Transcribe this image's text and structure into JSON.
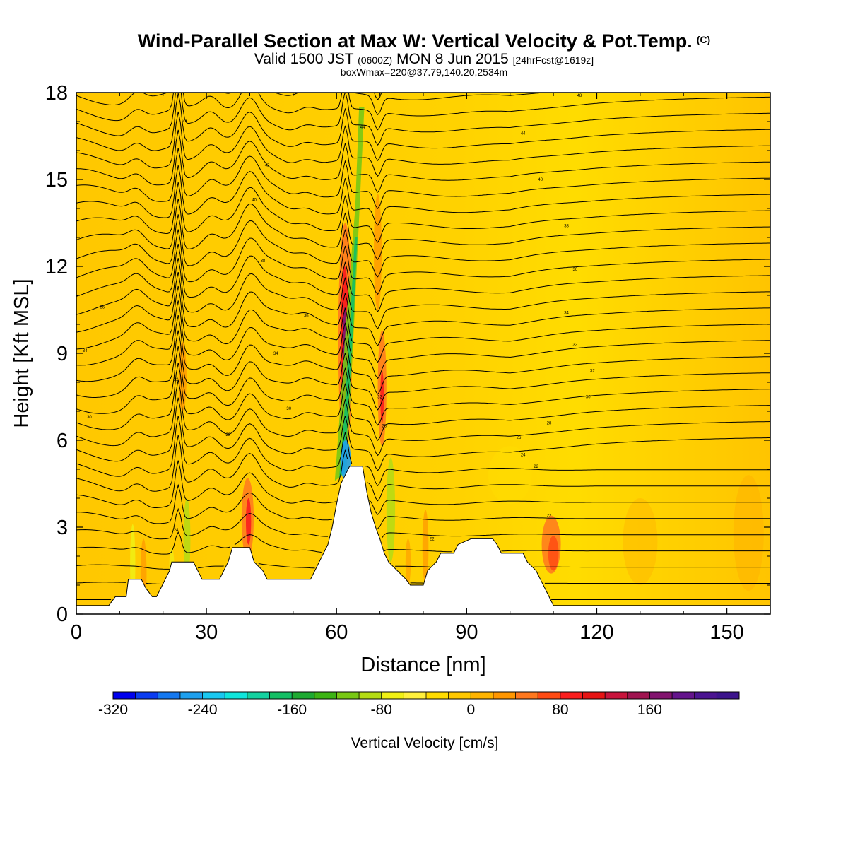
{
  "header": {
    "title": "Wind-Parallel Section at Max W: Vertical Velocity & Pot.Temp.",
    "title_mark": "(C)",
    "subtitle_a": "Valid 1500 JST",
    "subtitle_b": "(0600Z)",
    "subtitle_c": "MON 8 Jun 2015",
    "subtitle_d": "[24hrFcst@1619z]",
    "box_info": "boxWmax=220@37.79,140.20,2534m"
  },
  "chart_data": {
    "type": "heatmap",
    "xlabel": "Distance [nm]",
    "ylabel": "Height [Kft MSL]",
    "xlim": [
      0,
      160
    ],
    "ylim": [
      0,
      18
    ],
    "x_ticks": [
      0,
      30,
      60,
      90,
      120,
      150
    ],
    "y_ticks": [
      0,
      3,
      6,
      9,
      12,
      15,
      18
    ],
    "colorbar": {
      "label": "Vertical Velocity [cm/s]",
      "min": -320,
      "max": 240,
      "step": 20,
      "tick_values": [
        -320,
        -240,
        -160,
        -80,
        0,
        80,
        160
      ],
      "colors": [
        "#0000ee",
        "#0a3cf0",
        "#1478f0",
        "#1ea0ee",
        "#19c8f0",
        "#0fe6dc",
        "#14d2a0",
        "#14be64",
        "#1eaa32",
        "#3cb414",
        "#78c814",
        "#b4dc14",
        "#f0f014",
        "#fff03c",
        "#ffdc00",
        "#ffc800",
        "#ffb400",
        "#ff9600",
        "#ff781e",
        "#ff4b14",
        "#fa1e1e",
        "#e61414",
        "#c8143c",
        "#a01450",
        "#82146e",
        "#64148c",
        "#4b1491",
        "#3c148c"
      ]
    },
    "terrain_kft": [
      [
        0,
        0.3
      ],
      [
        7.5,
        0.3
      ],
      [
        9,
        0.6
      ],
      [
        11.5,
        0.6
      ],
      [
        12,
        1.2
      ],
      [
        15,
        1.2
      ],
      [
        16,
        0.9
      ],
      [
        17.5,
        0.6
      ],
      [
        18.5,
        0.6
      ],
      [
        19.5,
        0.9
      ],
      [
        20.5,
        1.2
      ],
      [
        21.5,
        1.5
      ],
      [
        22,
        1.8
      ],
      [
        27,
        1.8
      ],
      [
        29,
        1.2
      ],
      [
        33,
        1.2
      ],
      [
        34,
        1.5
      ],
      [
        35,
        1.8
      ],
      [
        36,
        2.3
      ],
      [
        40,
        2.3
      ],
      [
        41,
        1.8
      ],
      [
        43,
        1.5
      ],
      [
        44,
        1.2
      ],
      [
        54,
        1.2
      ],
      [
        55,
        1.5
      ],
      [
        56,
        1.8
      ],
      [
        57,
        2.1
      ],
      [
        58,
        2.4
      ],
      [
        59,
        3.0
      ],
      [
        60,
        3.8
      ],
      [
        61,
        4.5
      ],
      [
        62,
        4.8
      ],
      [
        63,
        5.1
      ],
      [
        66,
        5.1
      ],
      [
        67,
        4.2
      ],
      [
        68,
        3.5
      ],
      [
        69,
        3.0
      ],
      [
        70,
        2.6
      ],
      [
        71,
        2.1
      ],
      [
        72,
        1.8
      ],
      [
        74,
        1.5
      ],
      [
        76,
        1.2
      ],
      [
        77,
        1.0
      ],
      [
        80,
        1.0
      ],
      [
        81,
        1.5
      ],
      [
        83,
        1.8
      ],
      [
        84,
        2.1
      ],
      [
        87,
        2.1
      ],
      [
        88,
        2.4
      ],
      [
        91,
        2.6
      ],
      [
        96,
        2.6
      ],
      [
        97,
        2.4
      ],
      [
        98,
        2.1
      ],
      [
        103,
        2.1
      ],
      [
        104,
        1.8
      ],
      [
        106,
        1.5
      ],
      [
        107,
        1.2
      ],
      [
        108,
        0.9
      ],
      [
        109,
        0.6
      ],
      [
        110,
        0.3
      ],
      [
        160,
        0.3
      ]
    ],
    "theta_labels": [
      {
        "x": 25,
        "y": 17.0,
        "text": "44"
      },
      {
        "x": 66,
        "y": 16.8,
        "text": "44"
      },
      {
        "x": 103,
        "y": 16.6,
        "text": "44"
      },
      {
        "x": 116,
        "y": 17.9,
        "text": "48"
      },
      {
        "x": 44,
        "y": 15.5,
        "text": "42"
      },
      {
        "x": 107,
        "y": 15.0,
        "text": "40"
      },
      {
        "x": 41,
        "y": 14.3,
        "text": "40"
      },
      {
        "x": 113,
        "y": 13.4,
        "text": "38"
      },
      {
        "x": 43,
        "y": 12.2,
        "text": "38"
      },
      {
        "x": 115,
        "y": 11.9,
        "text": "36"
      },
      {
        "x": 6,
        "y": 10.6,
        "text": "36"
      },
      {
        "x": 53,
        "y": 10.3,
        "text": "36"
      },
      {
        "x": 113,
        "y": 10.4,
        "text": "34"
      },
      {
        "x": 2,
        "y": 9.1,
        "text": "34"
      },
      {
        "x": 46,
        "y": 9.0,
        "text": "34"
      },
      {
        "x": 115,
        "y": 9.3,
        "text": "32"
      },
      {
        "x": 23,
        "y": 8.1,
        "text": "32"
      },
      {
        "x": 119,
        "y": 8.4,
        "text": "32"
      },
      {
        "x": 3,
        "y": 6.8,
        "text": "30"
      },
      {
        "x": 49,
        "y": 7.1,
        "text": "30"
      },
      {
        "x": 118,
        "y": 7.5,
        "text": "30"
      },
      {
        "x": 35,
        "y": 6.2,
        "text": "28"
      },
      {
        "x": 109,
        "y": 6.6,
        "text": "28"
      },
      {
        "x": 102,
        "y": 6.1,
        "text": "26"
      },
      {
        "x": 103,
        "y": 5.5,
        "text": "24"
      },
      {
        "x": 106,
        "y": 5.1,
        "text": "22"
      },
      {
        "x": 23,
        "y": 2.9,
        "text": "24"
      },
      {
        "x": 82,
        "y": 2.6,
        "text": "22"
      },
      {
        "x": 109,
        "y": 3.4,
        "text": "22"
      },
      {
        "x": 70,
        "y": 7.5,
        "text": "32"
      },
      {
        "x": 71,
        "y": 6.5,
        "text": "28"
      }
    ]
  }
}
